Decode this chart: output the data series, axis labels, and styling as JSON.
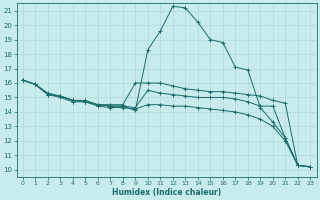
{
  "xlabel": "Humidex (Indice chaleur)",
  "background_color": "#c8ecec",
  "grid_color": "#b0d8d8",
  "line_color": "#1a6b6b",
  "xlim": [
    -0.5,
    23.5
  ],
  "ylim": [
    9.5,
    21.5
  ],
  "yticks": [
    10,
    11,
    12,
    13,
    14,
    15,
    16,
    17,
    18,
    19,
    20,
    21
  ],
  "xticks": [
    0,
    1,
    2,
    3,
    4,
    5,
    6,
    7,
    8,
    9,
    10,
    11,
    12,
    13,
    14,
    15,
    16,
    17,
    18,
    19,
    20,
    21,
    22,
    23
  ],
  "lines": [
    {
      "x": [
        0,
        1,
        2,
        3,
        4,
        5,
        6,
        7,
        8,
        9,
        10,
        11,
        12,
        13,
        14,
        15,
        16,
        17,
        18,
        19,
        20,
        21,
        22,
        23
      ],
      "y": [
        16.2,
        15.9,
        15.2,
        15.1,
        14.8,
        14.8,
        14.5,
        14.4,
        14.4,
        14.1,
        18.3,
        19.6,
        21.3,
        21.2,
        20.2,
        19.0,
        18.8,
        17.1,
        16.9,
        14.3,
        13.3,
        12.2,
        10.3,
        10.2
      ]
    },
    {
      "x": [
        0,
        1,
        2,
        3,
        4,
        5,
        6,
        7,
        8,
        9,
        10,
        11,
        12,
        13,
        14,
        15,
        16,
        17,
        18,
        19,
        20,
        21,
        22,
        23
      ],
      "y": [
        16.2,
        15.9,
        15.2,
        15.1,
        14.8,
        14.7,
        14.5,
        14.4,
        14.4,
        14.3,
        15.5,
        15.3,
        15.2,
        15.1,
        15.0,
        15.0,
        15.0,
        14.9,
        14.7,
        14.4,
        14.4,
        12.2,
        10.3,
        10.2
      ]
    },
    {
      "x": [
        0,
        1,
        2,
        3,
        4,
        5,
        6,
        7,
        8,
        9,
        10,
        11,
        12,
        13,
        14,
        15,
        16,
        17,
        18,
        19,
        20,
        21,
        22,
        23
      ],
      "y": [
        16.2,
        15.9,
        15.2,
        15.0,
        14.7,
        14.7,
        14.4,
        14.3,
        14.3,
        14.2,
        14.5,
        14.5,
        14.4,
        14.4,
        14.3,
        14.2,
        14.1,
        14.0,
        13.8,
        13.5,
        13.0,
        12.0,
        10.3,
        10.2
      ]
    },
    {
      "x": [
        0,
        1,
        2,
        3,
        4,
        5,
        6,
        7,
        8,
        9,
        10,
        11,
        12,
        13,
        14,
        15,
        16,
        17,
        18,
        19,
        20,
        21,
        22,
        23
      ],
      "y": [
        16.2,
        15.9,
        15.3,
        15.1,
        14.8,
        14.7,
        14.5,
        14.5,
        14.5,
        16.0,
        16.0,
        16.0,
        15.8,
        15.6,
        15.5,
        15.4,
        15.4,
        15.3,
        15.2,
        15.1,
        14.8,
        14.6,
        10.3,
        10.2
      ]
    }
  ]
}
